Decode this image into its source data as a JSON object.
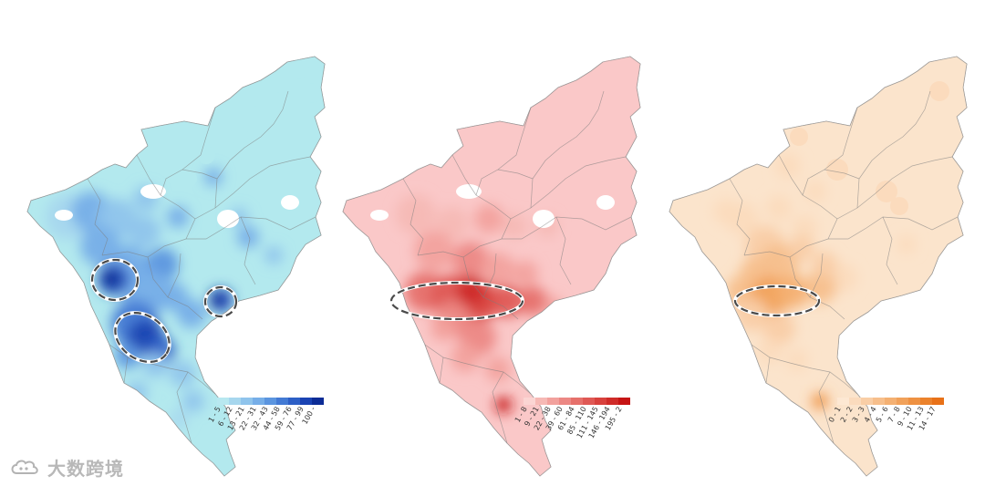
{
  "maps": [
    {
      "id": "blue",
      "base_color": "#b3e9ee",
      "legend": {
        "colors": [
          "#b8e8f0",
          "#a7d7ee",
          "#8fc4ec",
          "#76aee8",
          "#5b95df",
          "#437ad4",
          "#2d5fc6",
          "#1a43b3",
          "#0c2c96"
        ],
        "labels": [
          "1 - 5",
          "6 - 12",
          "13 - 21",
          "22 - 31",
          "32 - 43",
          "44 - 58",
          "59 - 76",
          "77 - 99",
          "100 -"
        ]
      }
    },
    {
      "id": "red",
      "base_color": "#fac8c8",
      "legend": {
        "colors": [
          "#fbd5d3",
          "#f6b9b5",
          "#f2a19d",
          "#ec8884",
          "#e6706b",
          "#df5854",
          "#d8413d",
          "#cf2b28",
          "#c61414"
        ],
        "labels": [
          "1 - 8",
          "9 - 21",
          "22 - 38",
          "39 - 60",
          "61 - 84",
          "85 - 110",
          "111 - 145",
          "146 - 194",
          "195 - 2"
        ]
      }
    },
    {
      "id": "orange",
      "base_color": "#fbe4cc",
      "legend": {
        "colors": [
          "#fde8d3",
          "#fbdbbd",
          "#f9cea6",
          "#f7bf8c",
          "#f4b072",
          "#f1a15a",
          "#ee9142",
          "#eb822c",
          "#e87118"
        ],
        "labels": [
          "0 - 1",
          "2 - 2",
          "3 - 3",
          "4 - 4",
          "5 - 6",
          "7 - 8",
          "9 - 10",
          "11 - 13",
          "14 - 17"
        ]
      }
    }
  ],
  "watermark": {
    "text": "大数跨境",
    "logo": "cloud-logo-icon"
  }
}
